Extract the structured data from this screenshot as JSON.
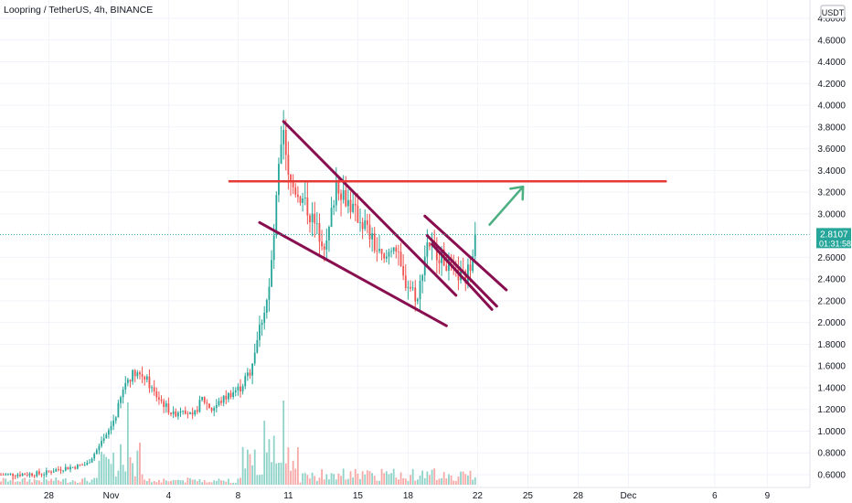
{
  "header": {
    "title": "Loopring / TetherUS, 4h, BINANCE"
  },
  "currency_badge": "USDT",
  "price_tag": {
    "price": "2.8107",
    "countdown": "01:31:58"
  },
  "colors": {
    "up": "#26a69a",
    "down": "#ef5350",
    "up_volume": "#8fd3c9",
    "down_volume": "#f6a9a7",
    "trendline": "#880e4f",
    "resistance": "#e53935",
    "arrow": "#4caf82",
    "grid": "#f0f3fa"
  },
  "chart_data": {
    "type": "candlestick",
    "title": "Loopring / TetherUS, 4h, BINANCE",
    "ylim": [
      0.5,
      4.9
    ],
    "y_ticks": [
      "4.8000",
      "4.6000",
      "4.4000",
      "4.2000",
      "4.0000",
      "3.8000",
      "3.6000",
      "3.4000",
      "3.2000",
      "3.0000",
      "2.6000",
      "2.4000",
      "2.2000",
      "2.0000",
      "1.8000",
      "1.6000",
      "1.4000",
      "1.2000",
      "1.0000",
      "0.8000",
      "0.6000"
    ],
    "x_ticks": [
      "28",
      "Nov",
      "4",
      "8",
      "11",
      "15",
      "18",
      "22",
      "25",
      "28",
      "Dec",
      "6",
      "9"
    ],
    "last_price": 2.8107,
    "resistance_level": 3.3,
    "close_path": [
      [
        0,
        0.6
      ],
      [
        18,
        0.61
      ],
      [
        22,
        0.64
      ],
      [
        26,
        0.66
      ],
      [
        30,
        0.67
      ],
      [
        36,
        0.7
      ],
      [
        44,
        0.95
      ],
      [
        48,
        1.15
      ],
      [
        52,
        1.45
      ],
      [
        56,
        1.55
      ],
      [
        60,
        1.5
      ],
      [
        64,
        1.35
      ],
      [
        68,
        1.25
      ],
      [
        72,
        1.15
      ],
      [
        76,
        1.22
      ],
      [
        80,
        1.12
      ],
      [
        84,
        1.3
      ],
      [
        88,
        1.2
      ],
      [
        92,
        1.28
      ],
      [
        96,
        1.35
      ],
      [
        100,
        1.4
      ],
      [
        104,
        1.55
      ],
      [
        108,
        1.95
      ],
      [
        112,
        2.3
      ],
      [
        114,
        2.8
      ],
      [
        116,
        3.4
      ],
      [
        118,
        3.7
      ],
      [
        120,
        3.3
      ],
      [
        124,
        3.2
      ],
      [
        128,
        3.05
      ],
      [
        132,
        2.85
      ],
      [
        136,
        2.7
      ],
      [
        140,
        3.3
      ],
      [
        144,
        3.15
      ],
      [
        148,
        3.0
      ],
      [
        152,
        2.9
      ],
      [
        156,
        2.7
      ],
      [
        160,
        2.55
      ],
      [
        164,
        2.75
      ],
      [
        168,
        2.4
      ],
      [
        172,
        2.3
      ],
      [
        174,
        2.2
      ],
      [
        176,
        2.5
      ],
      [
        178,
        2.75
      ],
      [
        182,
        2.65
      ],
      [
        186,
        2.55
      ],
      [
        190,
        2.45
      ],
      [
        194,
        2.4
      ],
      [
        196,
        2.55
      ],
      [
        198,
        2.81
      ]
    ],
    "candle_count": 199,
    "series": [
      {
        "name": "",
        "type": "volume"
      }
    ],
    "annotations": [
      {
        "type": "trendline",
        "from": {
          "bar": 118,
          "price": 3.85
        },
        "to": {
          "bar": 190,
          "price": 2.25
        }
      },
      {
        "type": "trendline",
        "from": {
          "bar": 108,
          "price": 2.92
        },
        "to": {
          "bar": 186,
          "price": 1.97
        }
      },
      {
        "type": "trendline",
        "from": {
          "bar": 178,
          "price": 2.8
        },
        "to": {
          "bar": 207,
          "price": 2.15
        }
      },
      {
        "type": "trendline",
        "from": {
          "bar": 177,
          "price": 2.98
        },
        "to": {
          "bar": 211,
          "price": 2.3
        }
      },
      {
        "type": "trendline",
        "from": {
          "bar": 180,
          "price": 2.72
        },
        "to": {
          "bar": 205,
          "price": 2.12
        }
      },
      {
        "type": "horizontal",
        "price": 3.3,
        "from_bar": 95,
        "to_bar": 278
      },
      {
        "type": "arrow",
        "from": {
          "bar": 204,
          "price": 2.9
        },
        "to": {
          "bar": 218,
          "price": 3.25
        }
      }
    ]
  }
}
